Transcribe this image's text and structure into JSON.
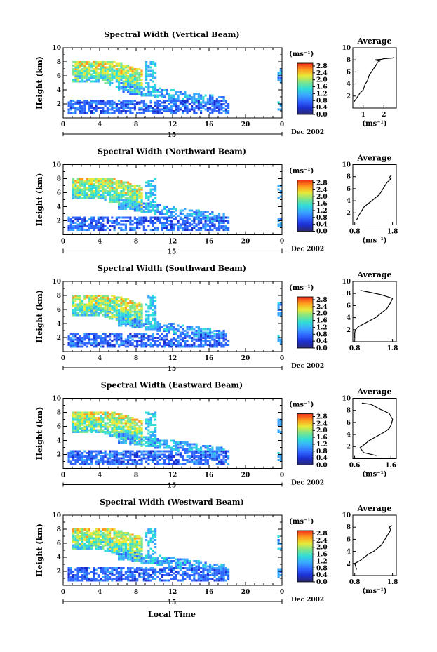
{
  "figure": {
    "xlabel": "Local Time",
    "date": "Dec 2002",
    "day": "15",
    "ylabel": "Height (km)",
    "unit": "(ms⁻¹)",
    "avg_title": "Average",
    "avg_unit": "(ms⁻¹)"
  },
  "colorbar": {
    "ticks": [
      "0.0",
      "0.4",
      "0.8",
      "1.2",
      "1.6",
      "2.0",
      "2.4",
      "2.8"
    ],
    "colors": [
      "#2b2a6e",
      "#1b2fd0",
      "#2f66ff",
      "#3aa7ff",
      "#30dcd8",
      "#7de58a",
      "#e8ea3a",
      "#ff9a1e",
      "#f12a18"
    ]
  },
  "chart_data": [
    {
      "type": "heatmap",
      "title": "Spectral Width (Vertical Beam)",
      "xlabel": "Local Time",
      "ylabel": "Height (km)",
      "xticks": [
        "0",
        "4",
        "8",
        "12",
        "16",
        "20",
        "0"
      ],
      "yticks": [
        "2",
        "4",
        "6",
        "8",
        "10"
      ],
      "xlim": [
        0,
        24
      ],
      "ylim": [
        0,
        10
      ],
      "average": {
        "title": "Average",
        "xlabel": "(ms⁻¹)",
        "xticks": [
          "1",
          "2"
        ],
        "xlim": [
          0.5,
          2.6
        ],
        "yticks": [
          "2",
          "4",
          "6",
          "8",
          "10"
        ],
        "x": [
          0.55,
          0.75,
          0.85,
          1.0,
          1.05,
          1.1,
          1.2,
          1.25,
          1.3,
          1.4,
          1.5,
          1.6,
          1.65,
          1.7,
          1.8,
          1.55,
          1.9,
          2.0,
          2.4,
          2.5
        ],
        "y": [
          1.0,
          2.0,
          2.5,
          3.0,
          3.5,
          4.0,
          4.5,
          5.0,
          5.5,
          6.0,
          6.5,
          7.0,
          7.3,
          7.6,
          7.8,
          8.0,
          8.1,
          8.2,
          8.3,
          8.4
        ]
      }
    },
    {
      "type": "heatmap",
      "title": "Spectral Width (Northward Beam)",
      "xlabel": "Local Time",
      "ylabel": "Height (km)",
      "xticks": [
        "0",
        "4",
        "8",
        "12",
        "16",
        "20",
        "0"
      ],
      "yticks": [
        "2",
        "4",
        "6",
        "8",
        "10"
      ],
      "xlim": [
        0,
        24
      ],
      "ylim": [
        0,
        10
      ],
      "average": {
        "title": "Average",
        "xlabel": "(ms⁻¹)",
        "xticks": [
          "0.8",
          "1.8"
        ],
        "xlim": [
          0.75,
          1.9
        ],
        "yticks": [
          "2",
          "4",
          "6",
          "8",
          "10"
        ],
        "x": [
          0.85,
          0.9,
          0.95,
          1.0,
          1.05,
          1.15,
          1.25,
          1.35,
          1.45,
          1.5,
          1.55,
          1.6,
          1.65,
          1.7,
          1.75,
          1.72,
          1.78
        ],
        "y": [
          0.8,
          1.5,
          2.0,
          2.5,
          3.0,
          3.5,
          4.0,
          4.5,
          5.0,
          5.5,
          6.0,
          6.5,
          7.0,
          7.3,
          7.6,
          7.9,
          8.3
        ]
      }
    },
    {
      "type": "heatmap",
      "title": "Spectral Width (Southward Beam)",
      "xlabel": "Local Time",
      "ylabel": "Height (km)",
      "xticks": [
        "0",
        "4",
        "8",
        "12",
        "16",
        "20",
        "0"
      ],
      "yticks": [
        "2",
        "4",
        "6",
        "8",
        "10"
      ],
      "xlim": [
        0,
        24
      ],
      "ylim": [
        0,
        10
      ],
      "average": {
        "title": "Average",
        "xlabel": "",
        "xticks": [
          "0.8",
          "1.8"
        ],
        "xlim": [
          0.75,
          1.9
        ],
        "yticks": [
          "2",
          "4",
          "6",
          "8",
          "10"
        ],
        "x": [
          0.8,
          0.8,
          0.82,
          0.9,
          1.05,
          1.2,
          1.35,
          1.45,
          1.55,
          1.65,
          1.7,
          1.75,
          1.8,
          1.5,
          1.2,
          0.95
        ],
        "y": [
          0.5,
          1.5,
          2.0,
          2.5,
          3.0,
          3.5,
          4.0,
          4.5,
          5.0,
          5.5,
          6.0,
          6.5,
          7.2,
          7.8,
          8.2,
          8.5
        ]
      }
    },
    {
      "type": "heatmap",
      "title": "Spectral Width (Eastward Beam)",
      "xlabel": "Local Time",
      "ylabel": "Height (km)",
      "xticks": [
        "0",
        "4",
        "8",
        "12",
        "16",
        "20",
        "0"
      ],
      "yticks": [
        "2",
        "4",
        "6",
        "8",
        "10"
      ],
      "xlim": [
        0,
        24
      ],
      "ylim": [
        0,
        10
      ],
      "average": {
        "title": "Average",
        "xlabel": "(ms⁻¹)",
        "xticks": [
          "0.6",
          "1.6"
        ],
        "xlim": [
          0.55,
          1.75
        ],
        "yticks": [
          "2",
          "4",
          "6",
          "8",
          "10"
        ],
        "x": [
          1.2,
          0.85,
          0.75,
          0.9,
          1.0,
          1.15,
          1.3,
          1.45,
          1.55,
          1.6,
          1.65,
          1.55,
          1.3,
          1.05,
          0.8
        ],
        "y": [
          0.5,
          1.0,
          1.8,
          2.5,
          3.0,
          3.5,
          4.0,
          4.5,
          5.0,
          5.5,
          6.5,
          7.5,
          8.2,
          9.0,
          9.2
        ]
      }
    },
    {
      "type": "heatmap",
      "title": "Spectral Width (Westward Beam)",
      "xlabel": "Local Time",
      "ylabel": "Height (km)",
      "xticks": [
        "0",
        "4",
        "8",
        "12",
        "16",
        "20",
        "0"
      ],
      "yticks": [
        "2",
        "4",
        "6",
        "8",
        "10"
      ],
      "xlim": [
        0,
        24
      ],
      "ylim": [
        0,
        10
      ],
      "average": {
        "title": "Average",
        "xlabel": "(ms⁻¹)",
        "xticks": [
          "0.8",
          "1.8"
        ],
        "xlim": [
          0.75,
          1.9
        ],
        "yticks": [
          "2",
          "4",
          "6",
          "8",
          "10"
        ],
        "x": [
          0.85,
          0.8,
          0.95,
          1.05,
          1.15,
          1.3,
          1.4,
          1.5,
          1.55,
          1.6,
          1.65,
          1.7,
          1.75,
          1.72,
          1.78
        ],
        "y": [
          1.0,
          2.0,
          2.5,
          3.0,
          3.5,
          4.0,
          4.5,
          5.0,
          5.5,
          6.0,
          6.5,
          7.0,
          7.5,
          8.0,
          8.3
        ]
      }
    }
  ]
}
